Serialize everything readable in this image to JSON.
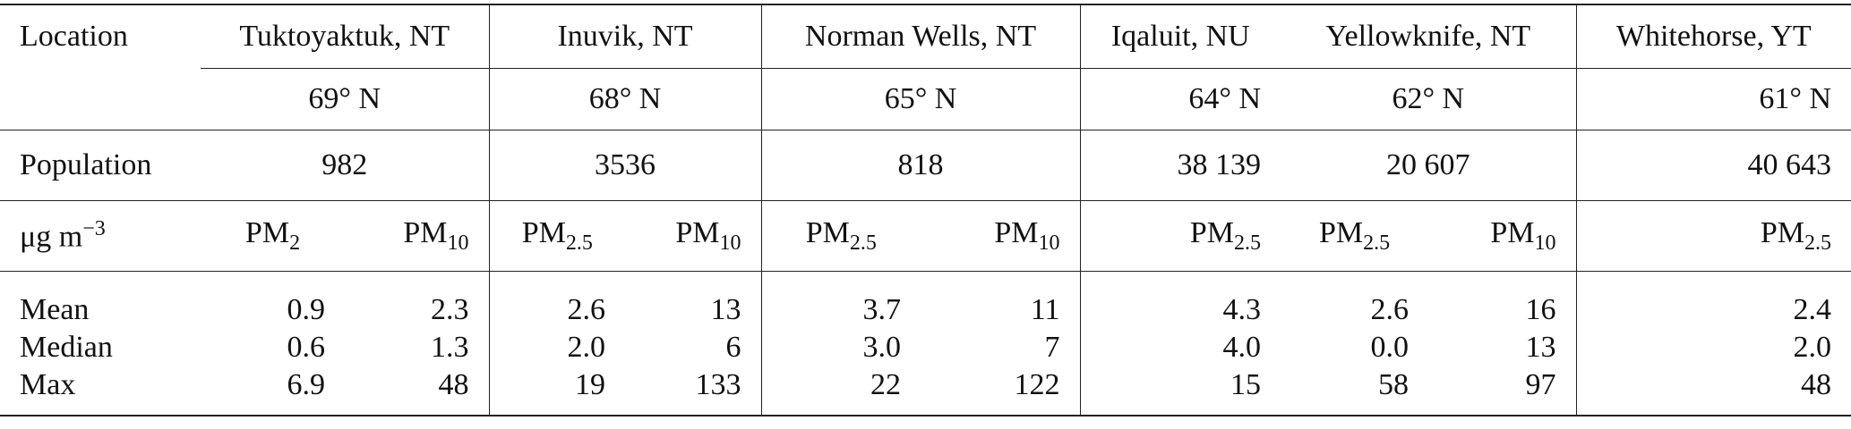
{
  "header": {
    "location_label": "Location",
    "population_label": "Population",
    "unit": {
      "text": "μg m",
      "sup": "−3"
    }
  },
  "locations": [
    {
      "name": "Tuktoyaktuk, NT",
      "latitude": "69° N",
      "population": "982",
      "pollutants": [
        {
          "base": "PM",
          "sub": "2"
        },
        {
          "base": "PM",
          "sub": "10"
        }
      ]
    },
    {
      "name": "Inuvik, NT",
      "latitude": "68° N",
      "population": "3536",
      "pollutants": [
        {
          "base": "PM",
          "sub": "2.5"
        },
        {
          "base": "PM",
          "sub": "10"
        }
      ]
    },
    {
      "name": "Norman Wells, NT",
      "latitude": "65° N",
      "population": "818",
      "pollutants": [
        {
          "base": "PM",
          "sub": "2.5"
        },
        {
          "base": "PM",
          "sub": "10"
        }
      ]
    },
    {
      "name": "Iqaluit, NU",
      "latitude": "64° N",
      "population": "38 139",
      "pollutants": [
        {
          "base": "PM",
          "sub": "2.5"
        }
      ]
    },
    {
      "name": "Yellowknife, NT",
      "latitude": "62° N",
      "population": "20 607",
      "pollutants": [
        {
          "base": "PM",
          "sub": "2.5"
        },
        {
          "base": "PM",
          "sub": "10"
        }
      ]
    },
    {
      "name": "Whitehorse, YT",
      "latitude": "61° N",
      "population": "40 643",
      "pollutants": [
        {
          "base": "PM",
          "sub": "2.5"
        }
      ]
    }
  ],
  "rows": [
    {
      "label": "Mean",
      "values": [
        "0.9",
        "2.3",
        "2.6",
        "13",
        "3.7",
        "11",
        "4.3",
        "2.6",
        "16",
        "2.4"
      ]
    },
    {
      "label": "Median",
      "values": [
        "0.6",
        "1.3",
        "2.0",
        "6",
        "3.0",
        "7",
        "4.0",
        "0.0",
        "13",
        "2.0"
      ]
    },
    {
      "label": "Max",
      "values": [
        "6.9",
        "48",
        "19",
        "133",
        "22",
        "122",
        "15",
        "58",
        "97",
        "48"
      ]
    }
  ]
}
